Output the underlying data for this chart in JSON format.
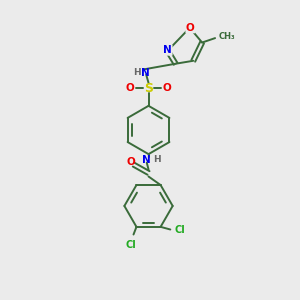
{
  "bg_color": "#ebebeb",
  "bond_color": "#3a6b3a",
  "atom_colors": {
    "N": "#0000ee",
    "O": "#ee0000",
    "S": "#cccc00",
    "Cl": "#22aa22",
    "C": "#3a6b3a",
    "H": "#666666"
  },
  "figsize": [
    3.0,
    3.0
  ],
  "dpi": 100,
  "lw": 1.4
}
